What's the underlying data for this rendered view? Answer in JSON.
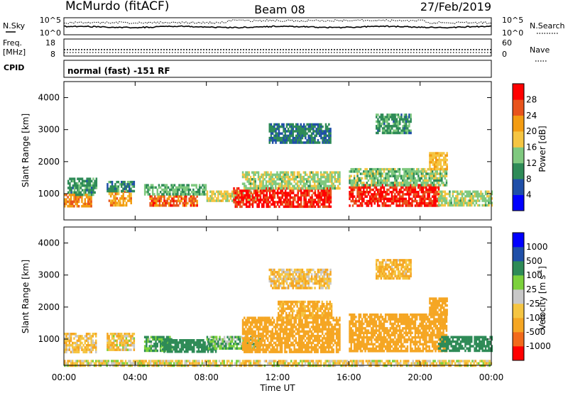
{
  "header": {
    "station": "McMurdo (fitACF)",
    "beam": "Beam 08",
    "date": "27/Feb/2019"
  },
  "noise_panel": {
    "left_label": "N.Sky",
    "right_label": "N.Search",
    "left_ticks": [
      "10^5",
      "10^0"
    ],
    "right_ticks": [
      "10^5",
      "10^0"
    ]
  },
  "freq_panel": {
    "left_label_1": "Freq.",
    "left_label_2": "[MHz]",
    "right_label": "Nave",
    "left_ticks": [
      "18",
      "8"
    ],
    "right_ticks": [
      "60",
      "0"
    ]
  },
  "cpid_panel": {
    "label": "CPID",
    "mode_text": "normal (fast) -151 RF"
  },
  "axes": {
    "ylabel": "Slant Range [km]",
    "xlabel": "Time UT",
    "yticks": [
      "1000",
      "2000",
      "3000",
      "4000"
    ],
    "xticks": [
      "00:00",
      "04:00",
      "08:00",
      "12:00",
      "16:00",
      "20:00",
      "00:00"
    ]
  },
  "colors": {
    "power": [
      "#0000ff",
      "#1f4fa8",
      "#2e8b57",
      "#7fc97f",
      "#f5c542",
      "#f39c12",
      "#e8541c",
      "#ff0000"
    ],
    "velocity": [
      "#ff0000",
      "#f26a1b",
      "#f5a623",
      "#f5c542",
      "#c8c8c8",
      "#7cd13c",
      "#2e8b57",
      "#1f4fa8",
      "#0000ff"
    ]
  },
  "chart_data": [
    {
      "type": "heatmap",
      "title": "",
      "xlabel": "",
      "ylabel": "Slant Range [km]",
      "xlim": [
        0,
        24
      ],
      "ylim": [
        180,
        4500
      ],
      "colorbar_label": "Power [dB]",
      "colorbar_ticks": [
        "4",
        "8",
        "12",
        "16",
        "20",
        "24",
        "28"
      ],
      "colorbar_range": [
        0,
        30
      ],
      "bands": [
        {
          "t0": 0.0,
          "t1": 1.5,
          "r0": 600,
          "r1": 1000,
          "value": 22
        },
        {
          "t0": 0.2,
          "t1": 1.8,
          "r0": 1000,
          "r1": 1500,
          "value": 10
        },
        {
          "t0": 2.5,
          "t1": 3.8,
          "r0": 650,
          "r1": 1100,
          "value": 20
        },
        {
          "t0": 2.4,
          "t1": 3.9,
          "r0": 1100,
          "r1": 1400,
          "value": 9
        },
        {
          "t0": 4.8,
          "t1": 7.5,
          "r0": 600,
          "r1": 950,
          "value": 24
        },
        {
          "t0": 4.5,
          "t1": 8.0,
          "r0": 950,
          "r1": 1300,
          "value": 12
        },
        {
          "t0": 8.0,
          "t1": 11.0,
          "r0": 800,
          "r1": 1100,
          "value": 16
        },
        {
          "t0": 9.5,
          "t1": 15.0,
          "r0": 600,
          "r1": 1200,
          "value": 27
        },
        {
          "t0": 10.0,
          "t1": 15.5,
          "r0": 1200,
          "r1": 1700,
          "value": 14
        },
        {
          "t0": 16.0,
          "t1": 21.0,
          "r0": 600,
          "r1": 1300,
          "value": 27
        },
        {
          "t0": 16.0,
          "t1": 21.5,
          "r0": 1300,
          "r1": 1800,
          "value": 13
        },
        {
          "t0": 20.5,
          "t1": 21.5,
          "r0": 1800,
          "r1": 2300,
          "value": 18
        },
        {
          "t0": 21.0,
          "t1": 24.0,
          "r0": 650,
          "r1": 1100,
          "value": 14
        },
        {
          "t0": 11.5,
          "t1": 15.0,
          "r0": 2600,
          "r1": 3200,
          "value": 8
        },
        {
          "t0": 17.5,
          "t1": 19.5,
          "r0": 2900,
          "r1": 3500,
          "value": 10
        }
      ]
    },
    {
      "type": "heatmap",
      "title": "",
      "xlabel": "Time UT",
      "ylabel": "Slant Range [km]",
      "xlim": [
        0,
        24
      ],
      "ylim": [
        180,
        4500
      ],
      "colorbar_label": "Velocity [m s-1]",
      "colorbar_ticks": [
        "-1000",
        "-500",
        "-100",
        "-25",
        "25",
        "100",
        "500",
        "1000"
      ],
      "bands": [
        {
          "t0": 0.0,
          "t1": 1.8,
          "r0": 600,
          "r1": 1200,
          "value": -80
        },
        {
          "t0": 2.4,
          "t1": 3.9,
          "r0": 650,
          "r1": 1200,
          "value": -60
        },
        {
          "t0": 4.5,
          "t1": 6.0,
          "r0": 650,
          "r1": 1100,
          "value": 120
        },
        {
          "t0": 5.5,
          "t1": 8.5,
          "r0": 600,
          "r1": 1000,
          "value": 300
        },
        {
          "t0": 8.0,
          "t1": 11.0,
          "r0": 700,
          "r1": 1100,
          "value": 80
        },
        {
          "t0": 10.0,
          "t1": 15.5,
          "r0": 600,
          "r1": 1700,
          "value": -300
        },
        {
          "t0": 12.0,
          "t1": 15.0,
          "r0": 1700,
          "r1": 2200,
          "value": -150
        },
        {
          "t0": 16.0,
          "t1": 21.5,
          "r0": 600,
          "r1": 1800,
          "value": -300
        },
        {
          "t0": 20.5,
          "t1": 21.5,
          "r0": 1800,
          "r1": 2300,
          "value": -200
        },
        {
          "t0": 21.0,
          "t1": 24.0,
          "r0": 650,
          "r1": 1100,
          "value": 200
        },
        {
          "t0": 0.0,
          "t1": 24.0,
          "r0": 180,
          "r1": 350,
          "value": -40
        },
        {
          "t0": 11.5,
          "t1": 15.0,
          "r0": 2600,
          "r1": 3200,
          "value": -80
        },
        {
          "t0": 17.5,
          "t1": 19.5,
          "r0": 2900,
          "r1": 3500,
          "value": -120
        }
      ]
    }
  ]
}
